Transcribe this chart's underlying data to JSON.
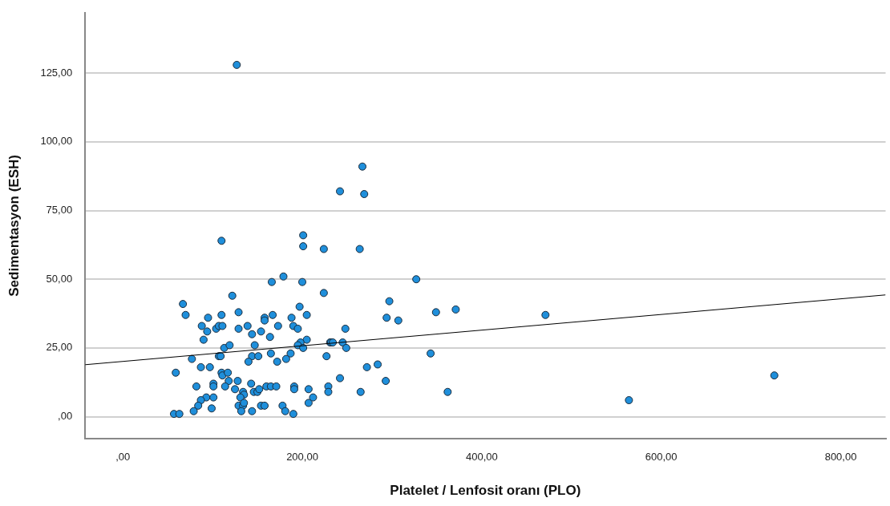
{
  "chart_data": {
    "type": "scatter",
    "xlabel": "Platelet / Lenfosit oranı (PLO)",
    "ylabel": "Sedimentasyon (ESH)",
    "xlim": [
      -42,
      850
    ],
    "ylim": [
      -8,
      147
    ],
    "xticks": [
      {
        "value": 0,
        "label": ",00"
      },
      {
        "value": 200,
        "label": "200,00"
      },
      {
        "value": 400,
        "label": "400,00"
      },
      {
        "value": 600,
        "label": "600,00"
      },
      {
        "value": 800,
        "label": "800,00"
      }
    ],
    "yticks": [
      {
        "value": 0,
        "label": ",00"
      },
      {
        "value": 25,
        "label": "25,00"
      },
      {
        "value": 50,
        "label": "50,00"
      },
      {
        "value": 75,
        "label": "75,00"
      },
      {
        "value": 100,
        "label": "100,00"
      },
      {
        "value": 125,
        "label": "125,00"
      }
    ],
    "grid": "y",
    "legend": false,
    "marker": "circle",
    "series": [
      {
        "color": "#1f8fdb",
        "x": [
          127,
          267,
          242,
          269,
          201,
          201,
          224,
          110,
          166,
          179,
          200,
          224,
          122,
          67,
          70,
          95,
          110,
          129,
          158,
          158,
          167,
          188,
          205,
          197,
          88,
          94,
          104,
          107,
          111,
          129,
          139,
          144,
          154,
          173,
          190,
          195,
          164,
          90,
          205,
          198,
          195,
          201,
          231,
          113,
          119,
          147,
          77,
          107,
          109,
          144,
          151,
          140,
          165,
          172,
          182,
          187,
          227,
          59,
          87,
          97,
          110,
          111,
          117,
          118,
          128,
          82,
          101,
          101,
          114,
          125,
          143,
          146,
          150,
          152,
          160,
          165,
          171,
          191,
          191,
          207,
          229,
          229,
          93,
          101,
          87,
          84,
          79,
          99,
          134,
          135,
          131,
          129,
          134,
          135,
          132,
          144,
          154,
          158,
          178,
          181,
          190,
          212,
          207,
          57,
          63,
          264,
          327,
          297,
          294,
          307,
          349,
          371,
          248,
          232,
          234,
          245,
          249,
          343,
          272,
          284,
          242,
          293,
          265,
          362,
          471,
          564,
          726
        ],
        "values": [
          128,
          91,
          82,
          81,
          66,
          62,
          61,
          64,
          49,
          51,
          49,
          45,
          44,
          41,
          37,
          36,
          37,
          38,
          36,
          35,
          37,
          36,
          37,
          40,
          33,
          31,
          32,
          33,
          33,
          32,
          33,
          30,
          31,
          33,
          33,
          32,
          29,
          28,
          28,
          27,
          26,
          25,
          27,
          25,
          26,
          26,
          21,
          22,
          22,
          22,
          22,
          20,
          23,
          20,
          21,
          23,
          22,
          16,
          18,
          18,
          16,
          15,
          16,
          13,
          13,
          11,
          12,
          11,
          11,
          10,
          12,
          9,
          9,
          10,
          11,
          11,
          11,
          11,
          10,
          10,
          11,
          9,
          7,
          7,
          6,
          4,
          2,
          3,
          9,
          8,
          7,
          4,
          4,
          5,
          2,
          2,
          4,
          4,
          4,
          2,
          1,
          7,
          5,
          1,
          1,
          61,
          50,
          42,
          36,
          35,
          38,
          39,
          32,
          27,
          27,
          27,
          25,
          23,
          18,
          19,
          14,
          13,
          9,
          9,
          37,
          6,
          15
        ]
      },
      {
        "type": "line",
        "color": "#000000",
        "marker": "none",
        "x": [
          -42,
          850
        ],
        "values": [
          18.9,
          44.3
        ]
      }
    ]
  }
}
